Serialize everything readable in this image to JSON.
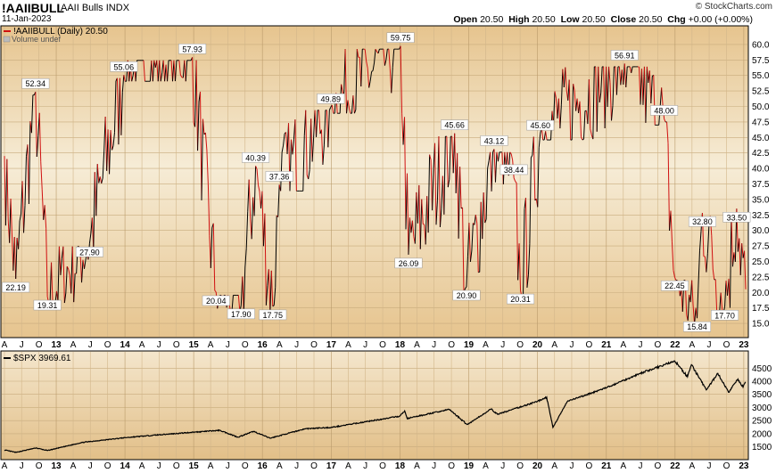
{
  "header": {
    "symbol": "!AAIIBULL",
    "name": "AAII Bulls",
    "exchange": "INDX",
    "date": "11-Jan-2023",
    "watermark": "© StockCharts.com",
    "open_label": "Open",
    "open": "20.50",
    "high_label": "High",
    "high": "20.50",
    "low_label": "Low",
    "low": "20.50",
    "close_label": "Close",
    "close": "20.50",
    "chg_label": "Chg",
    "chg": "+0.00 (+0.00%)"
  },
  "colors": {
    "panel_bg": "#e6c48e",
    "panel_top": "#f6ecd6",
    "bull_line": "#d01010",
    "spx_line": "#000000"
  },
  "chart_data": [
    {
      "type": "line",
      "legend": "!AAIIBULL (Daily) 20.50",
      "volume_note": "Volume undef",
      "ylim": [
        14,
        62
      ],
      "yticks": [
        15.0,
        17.5,
        20.0,
        22.5,
        25.0,
        27.5,
        30.0,
        32.5,
        35.0,
        37.5,
        40.0,
        42.5,
        45.0,
        47.5,
        50.0,
        52.5,
        55.0,
        57.5,
        60.0
      ],
      "x_tick_labels": [
        "A",
        "J",
        "O",
        "13",
        "A",
        "J",
        "O",
        "14",
        "A",
        "J",
        "O",
        "15",
        "A",
        "J",
        "O",
        "16",
        "A",
        "J",
        "O",
        "17",
        "A",
        "J",
        "O",
        "18",
        "A",
        "J",
        "O",
        "19",
        "A",
        "J",
        "O",
        "20",
        "A",
        "J",
        "O",
        "21",
        "A",
        "J",
        "O",
        "22",
        "A",
        "J",
        "O",
        "23"
      ],
      "x_start": "2012-04-01",
      "x_end": "2023-01-11",
      "peaks": [
        {
          "date": "2012-05-31",
          "value": 22.19
        },
        {
          "date": "2012-09-13",
          "value": 52.34
        },
        {
          "date": "2012-11-15",
          "value": 19.31
        },
        {
          "date": "2013-06-27",
          "value": 27.9
        },
        {
          "date": "2013-12-26",
          "value": 55.06
        },
        {
          "date": "2014-12-25",
          "value": 57.93
        },
        {
          "date": "2015-04-30",
          "value": 20.04
        },
        {
          "date": "2015-09-10",
          "value": 17.9
        },
        {
          "date": "2015-11-26",
          "value": 40.39
        },
        {
          "date": "2016-03-31",
          "value": 37.36
        },
        {
          "date": "2016-02-25",
          "value": 17.75
        },
        {
          "date": "2016-12-29",
          "value": 49.89
        },
        {
          "date": "2018-01-04",
          "value": 59.75
        },
        {
          "date": "2018-02-15",
          "value": 26.09
        },
        {
          "date": "2018-10-18",
          "value": 45.66
        },
        {
          "date": "2018-12-20",
          "value": 20.9
        },
        {
          "date": "2019-05-16",
          "value": 43.12
        },
        {
          "date": "2019-08-29",
          "value": 38.44
        },
        {
          "date": "2019-10-03",
          "value": 20.31
        },
        {
          "date": "2020-01-16",
          "value": 45.6
        },
        {
          "date": "2021-04-08",
          "value": 56.91
        },
        {
          "date": "2021-11-04",
          "value": 48.0
        },
        {
          "date": "2021-12-30",
          "value": 22.45
        },
        {
          "date": "2022-04-28",
          "value": 15.84
        },
        {
          "date": "2022-05-26",
          "value": 32.8
        },
        {
          "date": "2022-09-22",
          "value": 17.7
        },
        {
          "date": "2022-11-24",
          "value": 33.5
        }
      ],
      "last_value": 20.5
    },
    {
      "type": "line",
      "legend": "$SPX 3969.61",
      "ylim": [
        1150,
        4950
      ],
      "yticks": [
        1500,
        2000,
        2500,
        3000,
        3500,
        4000,
        4500
      ],
      "x_tick_labels": [
        "A",
        "J",
        "O",
        "13",
        "A",
        "J",
        "O",
        "14",
        "A",
        "J",
        "O",
        "15",
        "A",
        "J",
        "O",
        "16",
        "A",
        "J",
        "O",
        "17",
        "A",
        "J",
        "O",
        "18",
        "A",
        "J",
        "O",
        "19",
        "A",
        "J",
        "O",
        "20",
        "A",
        "J",
        "O",
        "21",
        "A",
        "J",
        "O",
        "22",
        "A",
        "J",
        "O",
        "23"
      ],
      "anchors": [
        {
          "date": "2012-04-01",
          "value": 1380
        },
        {
          "date": "2012-06-01",
          "value": 1290
        },
        {
          "date": "2012-09-15",
          "value": 1460
        },
        {
          "date": "2012-11-15",
          "value": 1360
        },
        {
          "date": "2013-05-20",
          "value": 1670
        },
        {
          "date": "2013-12-31",
          "value": 1850
        },
        {
          "date": "2014-06-30",
          "value": 1960
        },
        {
          "date": "2014-12-31",
          "value": 2060
        },
        {
          "date": "2015-05-20",
          "value": 2130
        },
        {
          "date": "2015-08-25",
          "value": 1870
        },
        {
          "date": "2015-11-15",
          "value": 2090
        },
        {
          "date": "2016-02-11",
          "value": 1830
        },
        {
          "date": "2016-08-15",
          "value": 2190
        },
        {
          "date": "2016-12-31",
          "value": 2240
        },
        {
          "date": "2017-12-31",
          "value": 2670
        },
        {
          "date": "2018-01-26",
          "value": 2870
        },
        {
          "date": "2018-02-08",
          "value": 2580
        },
        {
          "date": "2018-09-20",
          "value": 2930
        },
        {
          "date": "2018-12-24",
          "value": 2350
        },
        {
          "date": "2019-04-30",
          "value": 2940
        },
        {
          "date": "2019-06-03",
          "value": 2740
        },
        {
          "date": "2019-12-31",
          "value": 3230
        },
        {
          "date": "2020-02-19",
          "value": 3390
        },
        {
          "date": "2020-03-23",
          "value": 2240
        },
        {
          "date": "2020-06-08",
          "value": 3230
        },
        {
          "date": "2020-12-31",
          "value": 3750
        },
        {
          "date": "2021-06-30",
          "value": 4300
        },
        {
          "date": "2021-12-31",
          "value": 4770
        },
        {
          "date": "2022-03-08",
          "value": 4170
        },
        {
          "date": "2022-03-29",
          "value": 4630
        },
        {
          "date": "2022-06-16",
          "value": 3670
        },
        {
          "date": "2022-08-16",
          "value": 4300
        },
        {
          "date": "2022-10-12",
          "value": 3580
        },
        {
          "date": "2022-12-01",
          "value": 4080
        },
        {
          "date": "2022-12-28",
          "value": 3780
        },
        {
          "date": "2023-01-11",
          "value": 3969.61
        }
      ]
    }
  ]
}
